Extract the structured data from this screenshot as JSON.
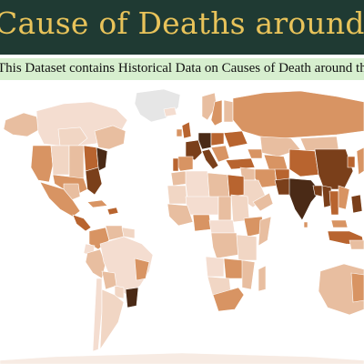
{
  "header": {
    "title": "Cause of Deaths around the World"
  },
  "banner": {
    "subtitle": "This Dataset contains Historical Data on Causes of Death around the World"
  },
  "map": {
    "palette": {
      "lightest": "#f4ddd0",
      "light": "#e8bea0",
      "medium": "#d89463",
      "dark": "#b8642f",
      "darker": "#7a3f1a",
      "darkest": "#4a2a16",
      "no_data": "#e6e6e6"
    }
  },
  "colors": {
    "title_bar": "#1f3a33",
    "title_text": "#e8c35a",
    "subtitle_bar": "#d7efcf"
  }
}
